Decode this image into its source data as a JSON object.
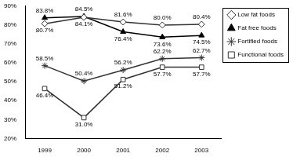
{
  "chart_data": {
    "type": "line",
    "categories": [
      "1999",
      "2000",
      "2001",
      "2002",
      "2003"
    ],
    "series": [
      {
        "name": "Low fat foods",
        "color": "#333333",
        "marker": "open-diamond",
        "values": [
          80.7,
          84.1,
          81.6,
          80.0,
          80.4
        ],
        "value_labels": [
          "80.7%",
          "84.1%",
          "81.6%",
          "80.0%",
          "80.4%"
        ]
      },
      {
        "name": "Fat free foods",
        "color": "#000000",
        "marker": "filled-triangle",
        "values": [
          83.8,
          84.5,
          76.4,
          73.6,
          74.5
        ],
        "value_labels": [
          "83.8%",
          "84.5%",
          "76.4%",
          "73.6%",
          "74.5%"
        ]
      },
      {
        "name": "Fortified foods",
        "color": "#333333",
        "marker": "star",
        "values": [
          58.5,
          50.4,
          56.2,
          62.2,
          62.7
        ],
        "value_labels": [
          "58.5%",
          "50.4%",
          "56.2%",
          "62.2%",
          "62.7%"
        ]
      },
      {
        "name": "Functional foods",
        "color": "#333333",
        "marker": "open-square",
        "values": [
          46.4,
          31.0,
          51.2,
          57.7,
          57.7
        ],
        "value_labels": [
          "46.4%",
          "31.0%",
          "51.2%",
          "57.7%",
          "57.7%"
        ]
      }
    ],
    "ylim": [
      20,
      90
    ],
    "yticks": [
      {
        "value": 20,
        "label": "20%"
      },
      {
        "value": 30,
        "label": "30%"
      },
      {
        "value": 40,
        "label": "40%"
      },
      {
        "value": 50,
        "label": "50%"
      },
      {
        "value": 60,
        "label": "60%"
      },
      {
        "value": 70,
        "label": "70%"
      },
      {
        "value": 80,
        "label": "80%"
      },
      {
        "value": 90,
        "label": "90%"
      }
    ],
    "grid": false,
    "legend": "right",
    "data_labels": true
  }
}
